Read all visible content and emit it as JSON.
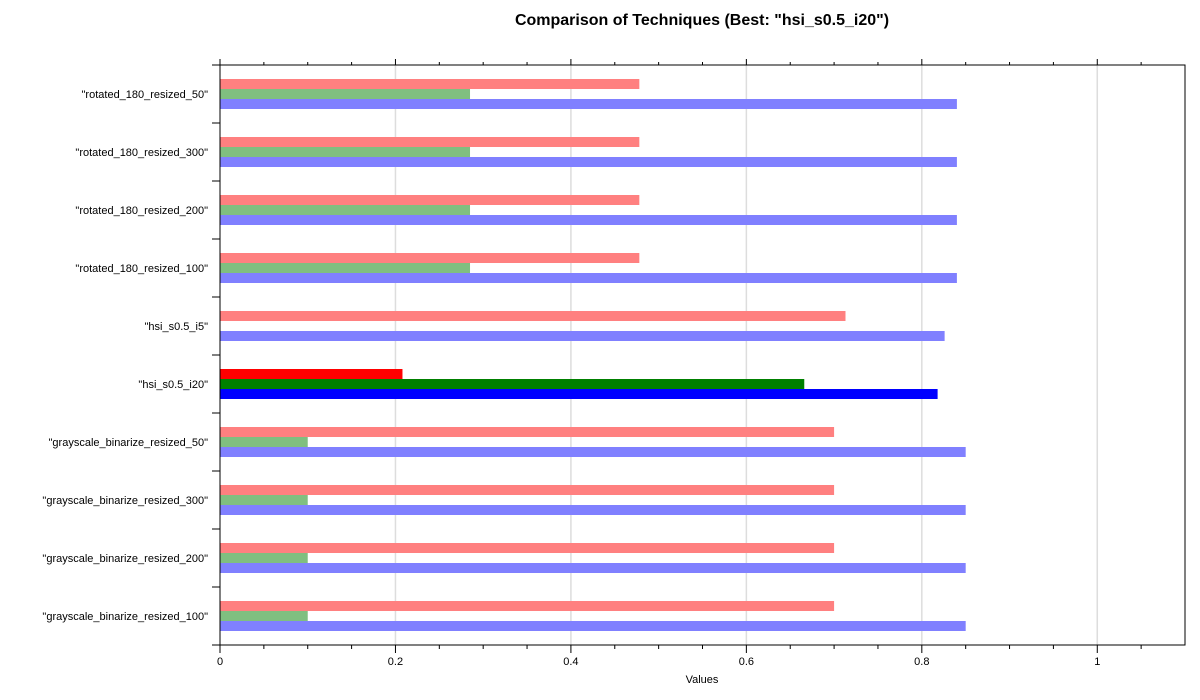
{
  "chart_data": {
    "type": "bar",
    "orientation": "horizontal",
    "title": "Comparison of Techniques (Best: \"hsi_s0.5_i20\")",
    "xlabel": "Values",
    "ylabel": "",
    "xlim": [
      0,
      1.1
    ],
    "xticks": [
      0,
      0.2,
      0.4,
      0.6,
      0.8,
      1
    ],
    "grid": true,
    "best_category": "\"hsi_s0.5_i20\"",
    "categories": [
      "\"grayscale_binarize_resized_100\"",
      "\"grayscale_binarize_resized_200\"",
      "\"grayscale_binarize_resized_300\"",
      "\"grayscale_binarize_resized_50\"",
      "\"hsi_s0.5_i20\"",
      "\"hsi_s0.5_i5\"",
      "\"rotated_180_resized_100\"",
      "\"rotated_180_resized_200\"",
      "\"rotated_180_resized_300\"",
      "\"rotated_180_resized_50\""
    ],
    "series": [
      {
        "color": "#ff0000",
        "faded_color": "#ff8080",
        "values": [
          0.7,
          0.7,
          0.7,
          0.7,
          0.208,
          0.713,
          0.478,
          0.478,
          0.478,
          0.478
        ]
      },
      {
        "color": "#008000",
        "faded_color": "#80bf80",
        "values": [
          0.1,
          0.1,
          0.1,
          0.1,
          0.666,
          0,
          0.285,
          0.285,
          0.285,
          0.285
        ]
      },
      {
        "color": "#0000ff",
        "faded_color": "#8080ff",
        "values": [
          0.85,
          0.85,
          0.85,
          0.85,
          0.818,
          0.826,
          0.84,
          0.84,
          0.84,
          0.84
        ]
      }
    ]
  }
}
